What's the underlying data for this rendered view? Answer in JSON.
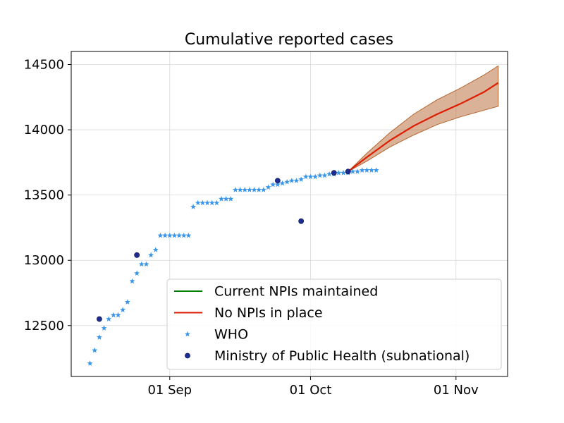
{
  "chart_data": {
    "type": "line",
    "title": "Cumulative reported cases",
    "xlabel": "",
    "ylabel": "",
    "x_is_date": true,
    "xlim": [
      "2020-08-11",
      "2020-11-12"
    ],
    "ylim": [
      12110,
      14600
    ],
    "x_ticks": [
      {
        "date": "2020-09-01",
        "label": "01 Sep"
      },
      {
        "date": "2020-10-01",
        "label": "01 Oct"
      },
      {
        "date": "2020-11-01",
        "label": "01 Nov"
      }
    ],
    "y_ticks": [
      12500,
      13000,
      13500,
      14000,
      14500
    ],
    "grid": true,
    "legend_position": "lower-right",
    "legend": [
      {
        "label": "Current NPIs maintained",
        "kind": "line",
        "color": "#008000"
      },
      {
        "label": "No NPIs in place",
        "kind": "line",
        "color": "#dd1c00"
      },
      {
        "label": "WHO",
        "kind": "star",
        "color": "#3a96e8"
      },
      {
        "label": "Ministry of Public Health (subnational)",
        "kind": "circle",
        "color": "#1d2d8f"
      }
    ],
    "series": [
      {
        "name": "No NPIs in place",
        "type": "line",
        "color": "#dd1c00",
        "band_color": "#b5652f",
        "x": [
          "2020-10-09",
          "2020-10-13",
          "2020-10-18",
          "2020-10-23",
          "2020-10-28",
          "2020-11-02",
          "2020-11-07",
          "2020-11-10"
        ],
        "y": [
          13680,
          13790,
          13920,
          14030,
          14120,
          14200,
          14290,
          14360
        ],
        "lower": [
          13680,
          13760,
          13870,
          13960,
          14040,
          14100,
          14150,
          14180
        ],
        "upper": [
          13680,
          13820,
          13980,
          14120,
          14230,
          14320,
          14420,
          14490
        ]
      },
      {
        "name": "WHO",
        "type": "scatter",
        "marker": "star",
        "color": "#3a96e8",
        "x": [
          "2020-08-15",
          "2020-08-16",
          "2020-08-17",
          "2020-08-18",
          "2020-08-19",
          "2020-08-20",
          "2020-08-21",
          "2020-08-22",
          "2020-08-23",
          "2020-08-24",
          "2020-08-25",
          "2020-08-26",
          "2020-08-27",
          "2020-08-28",
          "2020-08-29",
          "2020-08-30",
          "2020-08-31",
          "2020-09-01",
          "2020-09-02",
          "2020-09-03",
          "2020-09-04",
          "2020-09-05",
          "2020-09-06",
          "2020-09-07",
          "2020-09-08",
          "2020-09-09",
          "2020-09-10",
          "2020-09-11",
          "2020-09-12",
          "2020-09-13",
          "2020-09-14",
          "2020-09-15",
          "2020-09-16",
          "2020-09-17",
          "2020-09-18",
          "2020-09-19",
          "2020-09-20",
          "2020-09-21",
          "2020-09-22",
          "2020-09-23",
          "2020-09-24",
          "2020-09-25",
          "2020-09-26",
          "2020-09-27",
          "2020-09-28",
          "2020-09-29",
          "2020-09-30",
          "2020-10-01",
          "2020-10-02",
          "2020-10-03",
          "2020-10-04",
          "2020-10-05",
          "2020-10-06",
          "2020-10-07",
          "2020-10-08",
          "2020-10-09",
          "2020-10-10",
          "2020-10-11",
          "2020-10-12",
          "2020-10-13",
          "2020-10-14",
          "2020-10-15"
        ],
        "y": [
          12210,
          12310,
          12410,
          12480,
          12550,
          12580,
          12580,
          12620,
          12680,
          12840,
          12900,
          12970,
          12970,
          13040,
          13080,
          13190,
          13190,
          13190,
          13190,
          13190,
          13190,
          13190,
          13410,
          13440,
          13440,
          13440,
          13440,
          13440,
          13470,
          13470,
          13470,
          13540,
          13540,
          13540,
          13540,
          13540,
          13540,
          13540,
          13560,
          13580,
          13580,
          13590,
          13600,
          13610,
          13610,
          13620,
          13640,
          13640,
          13640,
          13650,
          13650,
          13660,
          13660,
          13670,
          13670,
          13670,
          13680,
          13680,
          13690,
          13690,
          13690,
          13690
        ]
      },
      {
        "name": "Ministry of Public Health (subnational)",
        "type": "scatter",
        "marker": "circle",
        "color": "#1d2d8f",
        "x": [
          "2020-08-17",
          "2020-08-25",
          "2020-09-24",
          "2020-09-29",
          "2020-10-06",
          "2020-10-09"
        ],
        "y": [
          12550,
          13040,
          13610,
          13300,
          13670,
          13680
        ]
      }
    ]
  }
}
